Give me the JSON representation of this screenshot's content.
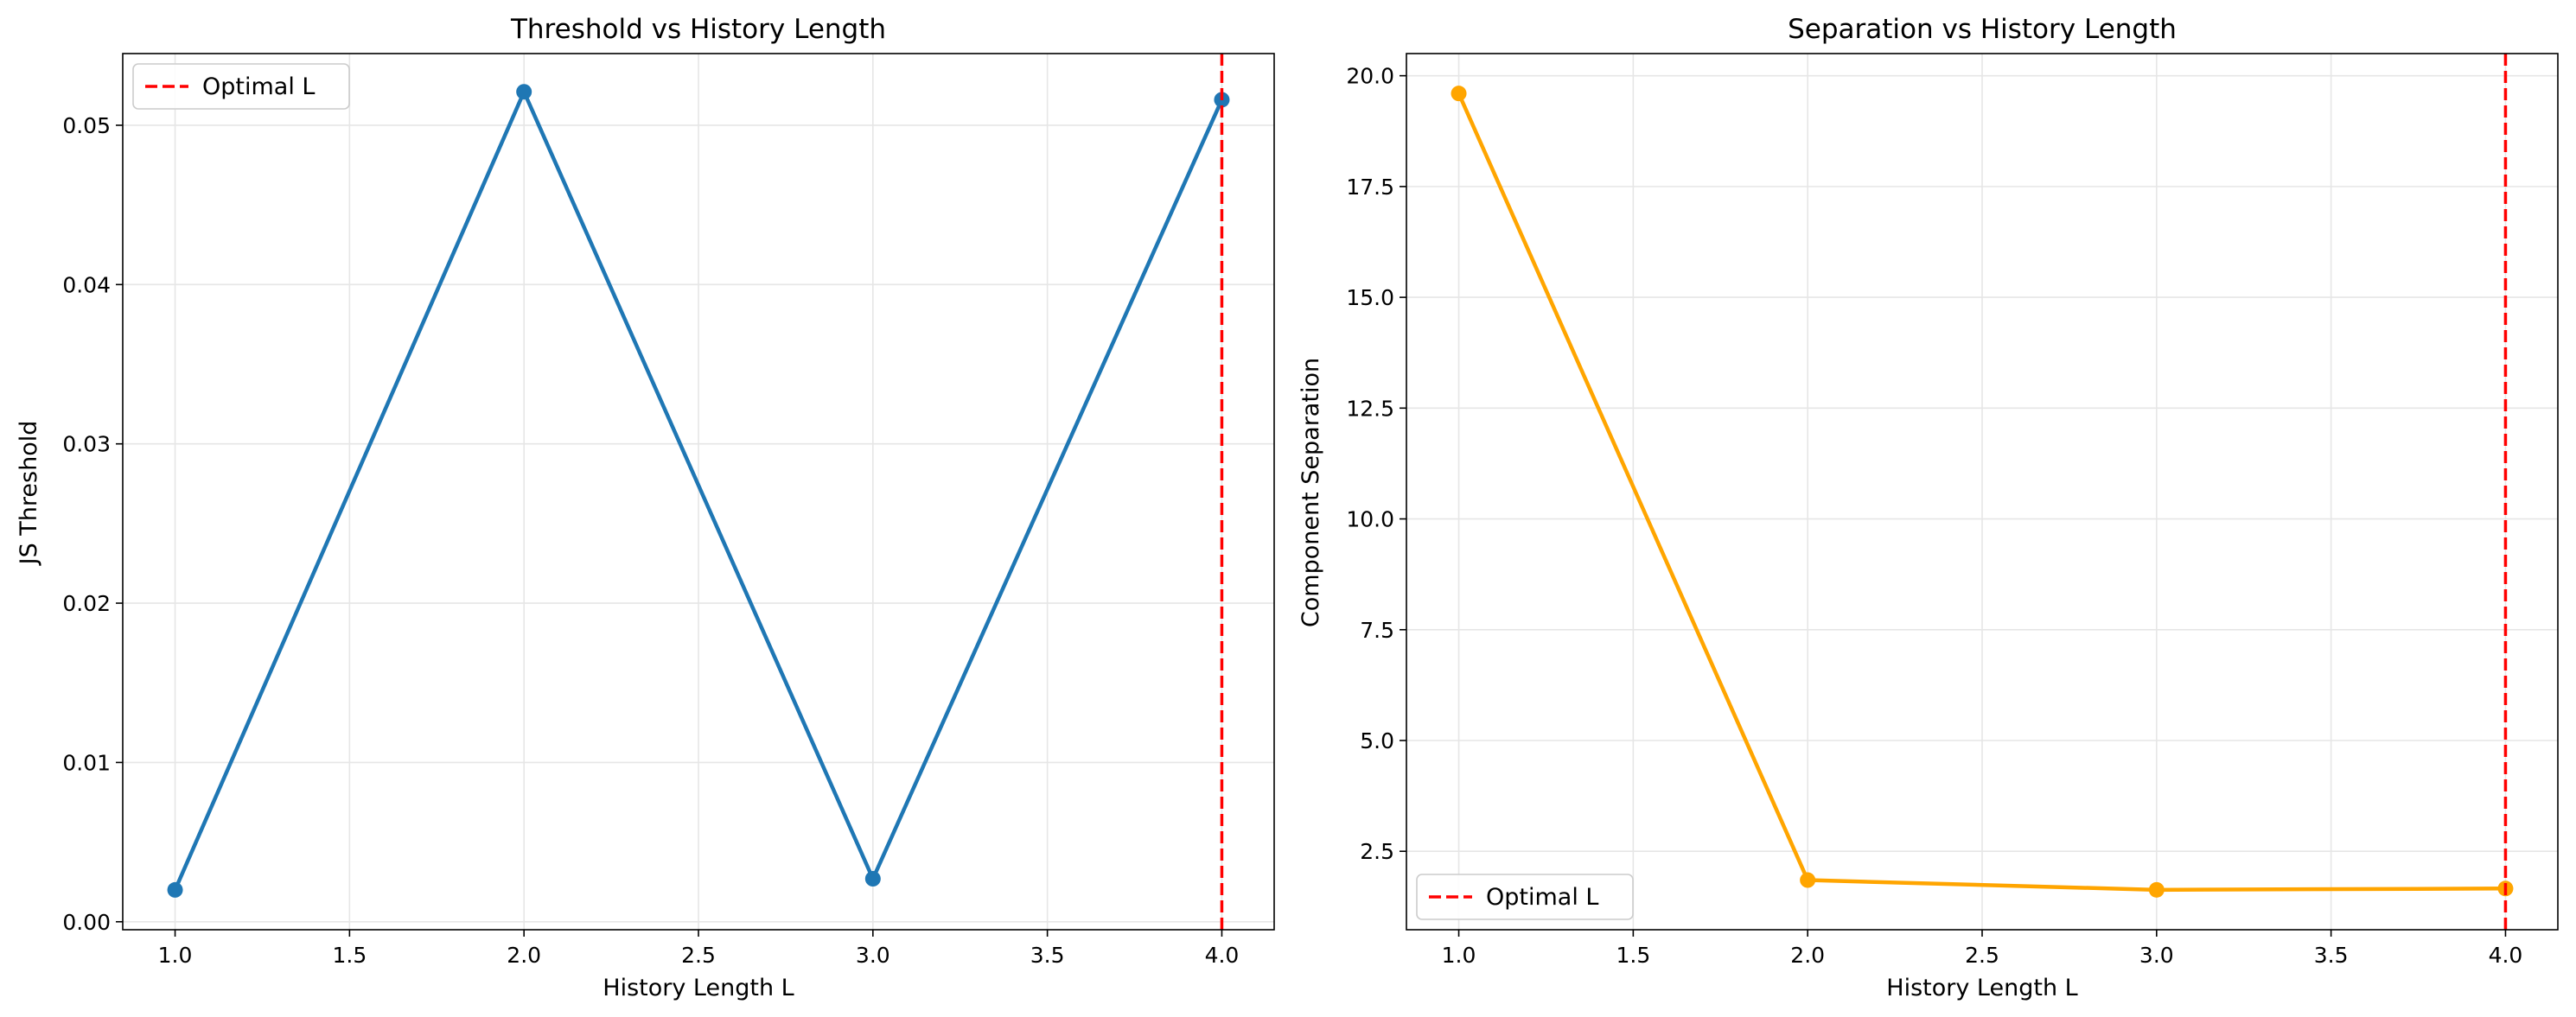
{
  "chart_data": [
    {
      "type": "line",
      "title": "Threshold vs History Length",
      "xlabel": "History Length L",
      "ylabel": "JS Threshold",
      "x": [
        1.0,
        2.0,
        3.0,
        4.0
      ],
      "series": [
        {
          "values": [
            0.002,
            0.0521,
            0.0027,
            0.0516
          ],
          "color": "#1f77b4",
          "marker": "circle"
        }
      ],
      "reference_lines": [
        {
          "axis": "x",
          "value": 4.0,
          "label": "Optimal L",
          "color": "#ff0000",
          "style": "dashed"
        }
      ],
      "xlim": [
        0.85,
        4.15
      ],
      "ylim": [
        -0.0005,
        0.0545
      ],
      "xticks": [
        1.0,
        1.5,
        2.0,
        2.5,
        3.0,
        3.5,
        4.0
      ],
      "xtick_labels": [
        "1.0",
        "1.5",
        "2.0",
        "2.5",
        "3.0",
        "3.5",
        "4.0"
      ],
      "yticks": [
        0.0,
        0.01,
        0.02,
        0.03,
        0.04,
        0.05
      ],
      "ytick_labels": [
        "0.00",
        "0.01",
        "0.02",
        "0.03",
        "0.04",
        "0.05"
      ],
      "grid": true,
      "legend": {
        "position": "upper-left",
        "entries": [
          "Optimal L"
        ]
      }
    },
    {
      "type": "line",
      "title": "Separation vs History Length",
      "xlabel": "History Length L",
      "ylabel": "Component Separation",
      "x": [
        1.0,
        2.0,
        3.0,
        4.0
      ],
      "series": [
        {
          "values": [
            19.6,
            1.85,
            1.63,
            1.66
          ],
          "color": "#ffa500",
          "marker": "circle"
        }
      ],
      "reference_lines": [
        {
          "axis": "x",
          "value": 4.0,
          "label": "Optimal L",
          "color": "#ff0000",
          "style": "dashed"
        }
      ],
      "xlim": [
        0.85,
        4.15
      ],
      "ylim": [
        0.73,
        20.5
      ],
      "xticks": [
        1.0,
        1.5,
        2.0,
        2.5,
        3.0,
        3.5,
        4.0
      ],
      "xtick_labels": [
        "1.0",
        "1.5",
        "2.0",
        "2.5",
        "3.0",
        "3.5",
        "4.0"
      ],
      "yticks": [
        2.5,
        5.0,
        7.5,
        10.0,
        12.5,
        15.0,
        17.5,
        20.0
      ],
      "ytick_labels": [
        "2.5",
        "5.0",
        "7.5",
        "10.0",
        "12.5",
        "15.0",
        "17.5",
        "20.0"
      ],
      "grid": true,
      "legend": {
        "position": "lower-left",
        "entries": [
          "Optimal L"
        ]
      }
    }
  ]
}
